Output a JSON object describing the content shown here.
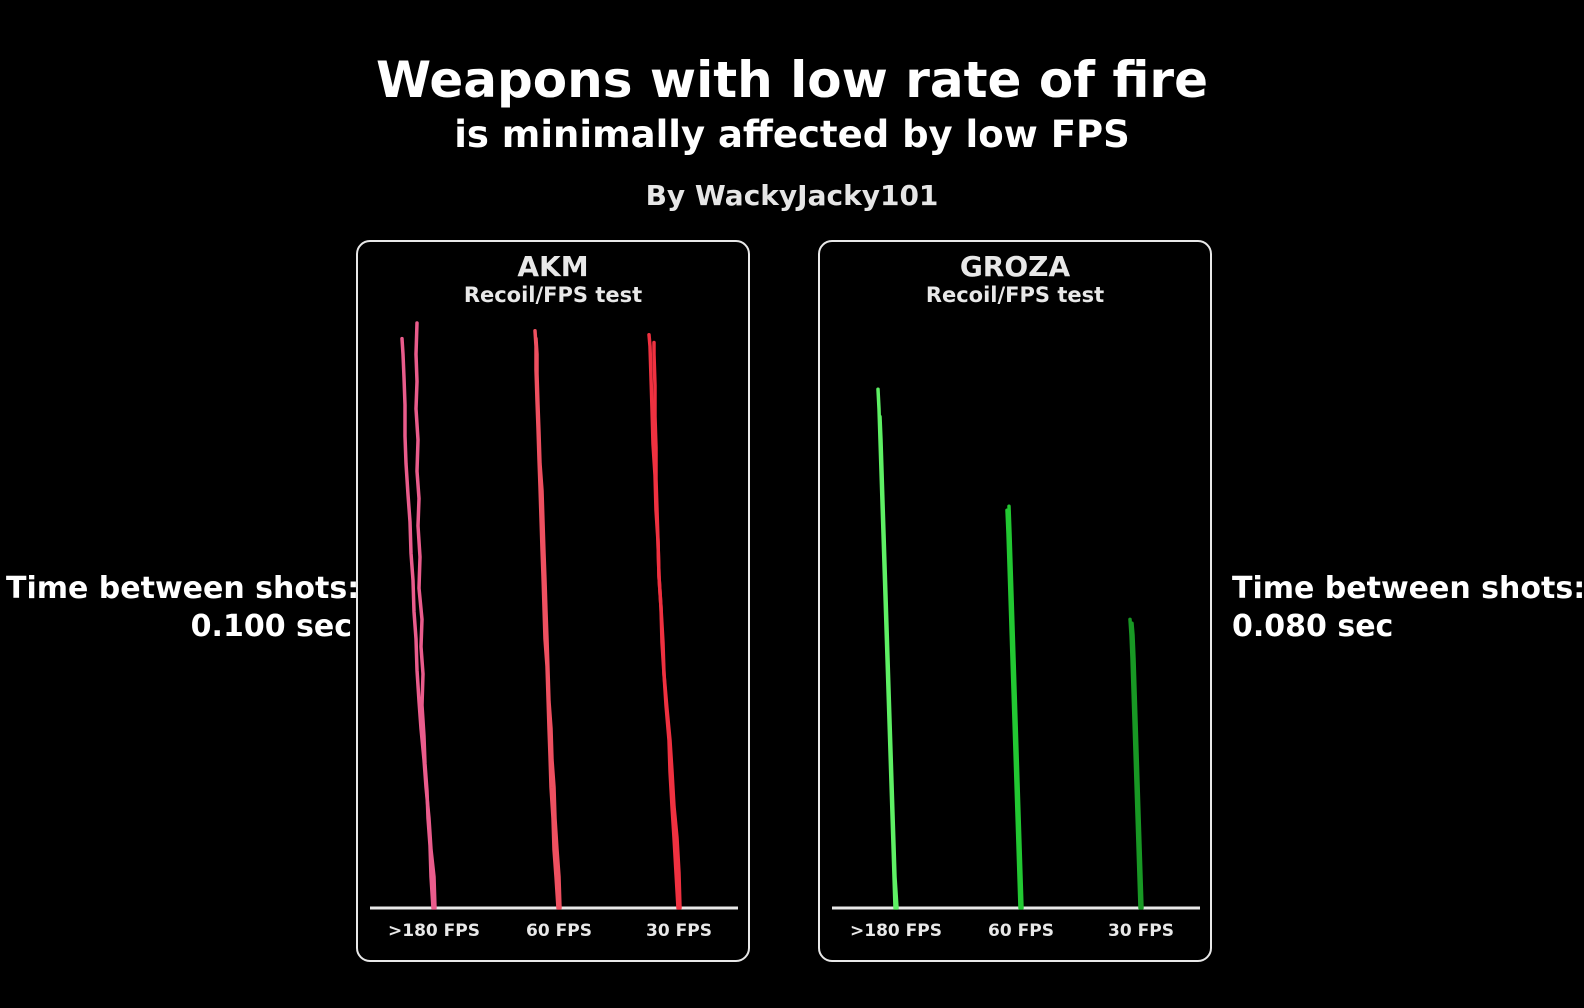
{
  "header": {
    "title": "Weapons with low rate of fire",
    "subtitle": "is minimally affected by low FPS",
    "byline": "By WackyJacky101"
  },
  "left_annotation": {
    "line1": "Time between shots:",
    "line2": "0.100 sec"
  },
  "right_annotation": {
    "line1": "Time between shots:",
    "line2": "0.080 sec"
  },
  "chart_data": [
    {
      "type": "line",
      "title": "AKM",
      "subtitle": "Recoil/FPS test",
      "categories": [
        ">180 FPS",
        "60 FPS",
        "30 FPS"
      ],
      "grid": false,
      "colors": [
        "#ea5c8c",
        "#ee5060",
        "#ef3140"
      ],
      "groups": [
        {
          "category": ">180 FPS",
          "traces": [
            [
              [
                0,
                0
              ],
              [
                -2,
                8
              ],
              [
                -3,
                16
              ],
              [
                -5,
                23
              ],
              [
                -6,
                30
              ],
              [
                -8,
                37
              ],
              [
                -9,
                44
              ],
              [
                -11,
                52
              ],
              [
                -10,
                60
              ],
              [
                -12,
                67
              ],
              [
                -11,
                74
              ],
              [
                -14,
                82
              ],
              [
                -13,
                90
              ],
              [
                -15,
                98
              ],
              [
                -14,
                105
              ],
              [
                -16,
                112
              ],
              [
                -15,
                120
              ],
              [
                -17,
                128
              ],
              [
                -16,
                135
              ],
              [
                -17,
                142
              ],
              [
                -16,
                150
              ]
            ],
            [
              [
                0,
                0
              ],
              [
                -1,
                8
              ],
              [
                -4,
                15
              ],
              [
                -6,
                23
              ],
              [
                -9,
                31
              ],
              [
                -11,
                38
              ],
              [
                -14,
                46
              ],
              [
                -16,
                53
              ],
              [
                -18,
                61
              ],
              [
                -19,
                69
              ],
              [
                -21,
                76
              ],
              [
                -22,
                84
              ],
              [
                -24,
                91
              ],
              [
                -25,
                99
              ],
              [
                -27,
                106
              ],
              [
                -29,
                114
              ],
              [
                -30,
                121
              ],
              [
                -30,
                129
              ],
              [
                -31,
                136
              ],
              [
                -32,
                142
              ],
              [
                -33,
                146
              ]
            ]
          ]
        },
        {
          "category": "60 FPS",
          "traces": [
            [
              [
                0,
                0
              ],
              [
                -2,
                8
              ],
              [
                -4,
                15
              ],
              [
                -5,
                23
              ],
              [
                -7,
                31
              ],
              [
                -8,
                39
              ],
              [
                -9,
                46
              ],
              [
                -10,
                54
              ],
              [
                -11,
                62
              ],
              [
                -13,
                69
              ],
              [
                -14,
                77
              ],
              [
                -15,
                85
              ],
              [
                -16,
                92
              ],
              [
                -17,
                100
              ],
              [
                -18,
                108
              ],
              [
                -19,
                115
              ],
              [
                -20,
                123
              ],
              [
                -21,
                130
              ],
              [
                -22,
                138
              ],
              [
                -22,
                144
              ],
              [
                -23,
                148
              ]
            ],
            [
              [
                0,
                0
              ],
              [
                -1,
                8
              ],
              [
                -3,
                15
              ],
              [
                -5,
                23
              ],
              [
                -6,
                31
              ],
              [
                -8,
                38
              ],
              [
                -9,
                46
              ],
              [
                -11,
                53
              ],
              [
                -12,
                61
              ],
              [
                -13,
                69
              ],
              [
                -14,
                76
              ],
              [
                -15,
                84
              ],
              [
                -16,
                91
              ],
              [
                -17,
                99
              ],
              [
                -18,
                107
              ],
              [
                -20,
                114
              ],
              [
                -21,
                122
              ],
              [
                -22,
                129
              ],
              [
                -23,
                137
              ],
              [
                -23,
                142
              ],
              [
                -24,
                146
              ]
            ]
          ]
        },
        {
          "category": "30 FPS",
          "traces": [
            [
              [
                0,
                0
              ],
              [
                -2,
                9
              ],
              [
                -4,
                18
              ],
              [
                -6,
                26
              ],
              [
                -8,
                35
              ],
              [
                -9,
                43
              ],
              [
                -12,
                52
              ],
              [
                -14,
                60
              ],
              [
                -16,
                68
              ],
              [
                -17,
                77
              ],
              [
                -19,
                85
              ],
              [
                -20,
                94
              ],
              [
                -21,
                102
              ],
              [
                -22,
                110
              ],
              [
                -22,
                118
              ],
              [
                -23,
                126
              ],
              [
                -23,
                134
              ],
              [
                -24,
                142
              ],
              [
                -24,
                145
              ]
            ],
            [
              [
                0,
                0
              ],
              [
                -1,
                9
              ],
              [
                -3,
                18
              ],
              [
                -6,
                26
              ],
              [
                -8,
                35
              ],
              [
                -10,
                43
              ],
              [
                -13,
                51
              ],
              [
                -16,
                60
              ],
              [
                -17,
                68
              ],
              [
                -19,
                77
              ],
              [
                -21,
                85
              ],
              [
                -22,
                94
              ],
              [
                -24,
                102
              ],
              [
                -25,
                111
              ],
              [
                -27,
                119
              ],
              [
                -28,
                128
              ],
              [
                -29,
                136
              ],
              [
                -30,
                144
              ],
              [
                -31,
                147
              ]
            ]
          ]
        }
      ]
    },
    {
      "type": "line",
      "title": "GROZA",
      "subtitle": "Recoil/FPS test",
      "categories": [
        ">180 FPS",
        "60 FPS",
        "30 FPS"
      ],
      "grid": false,
      "colors": [
        "#5ef064",
        "#22c832",
        "#189824"
      ],
      "groups": [
        {
          "category": ">180 FPS",
          "traces": [
            [
              [
                0,
                0
              ],
              [
                -1,
                8
              ],
              [
                -2,
                16
              ],
              [
                -3,
                24
              ],
              [
                -4,
                32
              ],
              [
                -5,
                40
              ],
              [
                -6,
                48
              ],
              [
                -7,
                56
              ],
              [
                -8,
                64
              ],
              [
                -9,
                72
              ],
              [
                -10,
                80
              ],
              [
                -11,
                88
              ],
              [
                -12,
                96
              ],
              [
                -13,
                104
              ],
              [
                -14,
                112
              ],
              [
                -15,
                120
              ],
              [
                -16,
                128
              ],
              [
                -17,
                133
              ]
            ],
            [
              [
                0,
                0
              ],
              [
                -2,
                8
              ],
              [
                -3,
                16
              ],
              [
                -4,
                24
              ],
              [
                -5,
                32
              ],
              [
                -6,
                40
              ],
              [
                -7,
                48
              ],
              [
                -8,
                56
              ],
              [
                -9,
                64
              ],
              [
                -10,
                72
              ],
              [
                -11,
                80
              ],
              [
                -12,
                88
              ],
              [
                -13,
                96
              ],
              [
                -14,
                104
              ],
              [
                -15,
                112
              ],
              [
                -16,
                120
              ],
              [
                -17,
                126
              ]
            ]
          ]
        },
        {
          "category": "60 FPS",
          "traces": [
            [
              [
                0,
                0
              ],
              [
                -1,
                8
              ],
              [
                -2,
                16
              ],
              [
                -3,
                24
              ],
              [
                -4,
                32
              ],
              [
                -5,
                40
              ],
              [
                -6,
                48
              ],
              [
                -7,
                56
              ],
              [
                -8,
                64
              ],
              [
                -9,
                72
              ],
              [
                -10,
                80
              ],
              [
                -11,
                88
              ],
              [
                -12,
                96
              ],
              [
                -13,
                102
              ]
            ],
            [
              [
                0,
                0
              ],
              [
                -1,
                8
              ],
              [
                -2,
                16
              ],
              [
                -3,
                24
              ],
              [
                -4,
                32
              ],
              [
                -5,
                40
              ],
              [
                -6,
                48
              ],
              [
                -7,
                56
              ],
              [
                -8,
                64
              ],
              [
                -9,
                72
              ],
              [
                -10,
                80
              ],
              [
                -11,
                88
              ],
              [
                -12,
                96
              ],
              [
                -13,
                103
              ]
            ]
          ]
        },
        {
          "category": "30 FPS",
          "traces": [
            [
              [
                0,
                0
              ],
              [
                -1,
                8
              ],
              [
                -2,
                16
              ],
              [
                -3,
                24
              ],
              [
                -4,
                32
              ],
              [
                -5,
                40
              ],
              [
                -6,
                48
              ],
              [
                -7,
                56
              ],
              [
                -8,
                64
              ],
              [
                -9,
                70
              ],
              [
                -10,
                74
              ]
            ],
            [
              [
                0,
                0
              ],
              [
                -1,
                8
              ],
              [
                -2,
                16
              ],
              [
                -3,
                24
              ],
              [
                -4,
                32
              ],
              [
                -5,
                40
              ],
              [
                -6,
                48
              ],
              [
                -7,
                56
              ],
              [
                -8,
                64
              ],
              [
                -9,
                70
              ],
              [
                -10,
                73
              ]
            ]
          ]
        }
      ]
    }
  ]
}
